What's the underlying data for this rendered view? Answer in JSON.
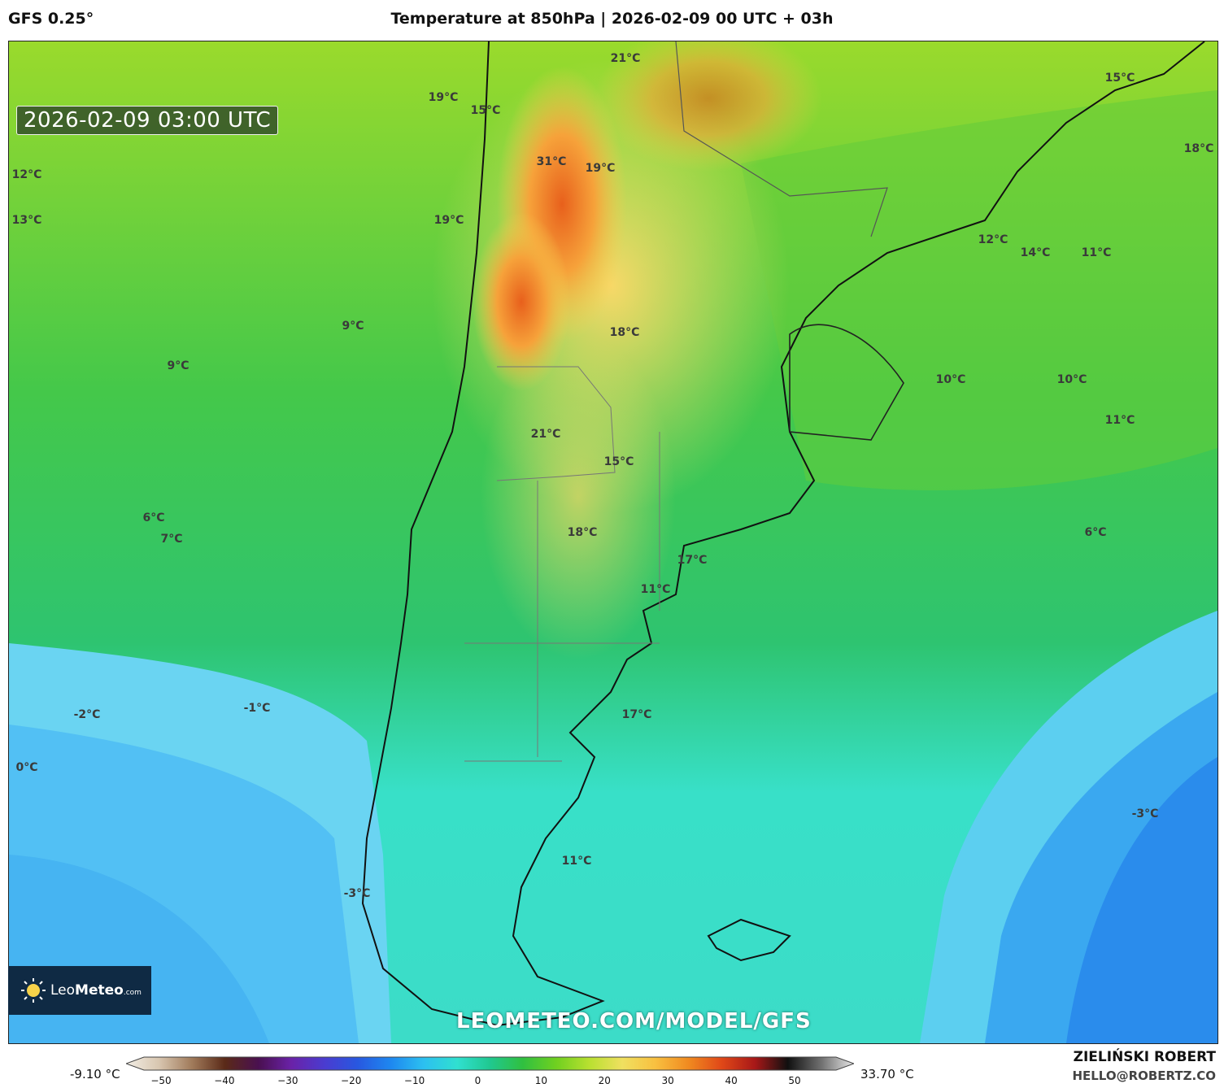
{
  "header": {
    "model": "GFS 0.25°",
    "title": "Temperature at 850hPa | 2026-02-09 00 UTC + 03h"
  },
  "map": {
    "timestamp": "2026-02-09 03:00 UTC",
    "watermark": "LEOMETEO.COM/MODEL/GFS",
    "logo": {
      "name_part1": "Leo",
      "name_part2": "Meteo",
      "suffix": ".com"
    },
    "labels": [
      "21°C",
      "15°C",
      "19°C",
      "31°C",
      "19°C",
      "12°C",
      "13°C",
      "19°C",
      "15°C",
      "18°C",
      "12°C",
      "14°C",
      "11°C",
      "9°C",
      "9°C",
      "18°C",
      "10°C",
      "10°C",
      "11°C",
      "21°C",
      "15°C",
      "6°C",
      "7°C",
      "18°C",
      "6°C",
      "17°C",
      "11°C",
      "-2°C",
      "-1°C",
      "17°C",
      "0°C",
      "-3°C",
      "11°C",
      "-3°C"
    ]
  },
  "colorbar": {
    "min_label": "-9.10 °C",
    "max_label": "33.70 °C",
    "ticks": [
      "−50",
      "−40",
      "−30",
      "−20",
      "−10",
      "0",
      "10",
      "20",
      "30",
      "40",
      "50"
    ],
    "colors": [
      "#f3efe6",
      "#d8c6b0",
      "#a07a5a",
      "#5a2a18",
      "#4a1050",
      "#6a22a8",
      "#4a3cd0",
      "#2858e0",
      "#1e88f0",
      "#2cc0f0",
      "#30e0d0",
      "#20c890",
      "#30c040",
      "#70d020",
      "#b8e030",
      "#f0e060",
      "#f8c040",
      "#f08a20",
      "#e04818",
      "#a81818",
      "#101010",
      "#707070",
      "#e8e8e8"
    ],
    "accent": "#30c040"
  },
  "credit": {
    "name": "ZIELIŃSKI ROBERT",
    "email": "HELLO@ROBERTZ.CO"
  }
}
